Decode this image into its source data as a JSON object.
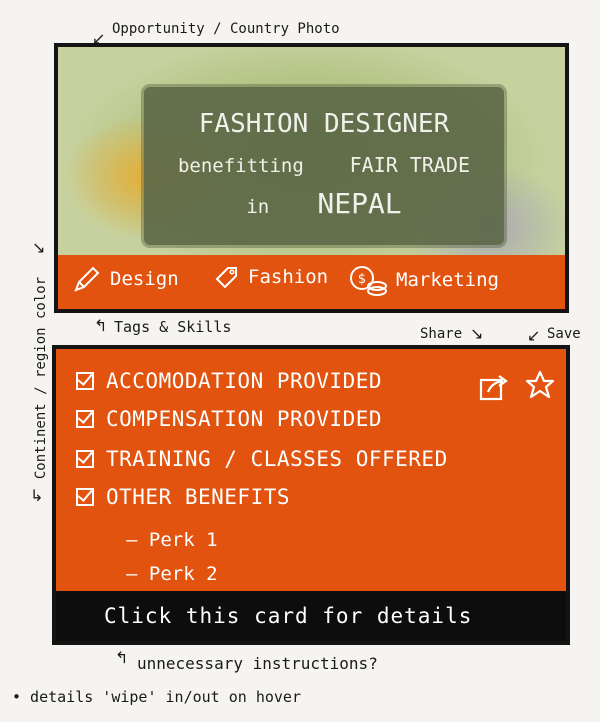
{
  "annotations": {
    "photo_label": "Opportunity / Country Photo",
    "region_label": "Continent / region color",
    "tags_label": "Tags & Skills",
    "share_label": "Share",
    "save_label": "Save",
    "instructions_label": "unnecessary instructions?",
    "hover_note": "• details 'wipe' in/out on hover"
  },
  "photo": {
    "title_line1": "FASHION DESIGNER",
    "title_line2a": "benefitting",
    "title_line2b": "FAIR TRADE",
    "title_line3a": "in",
    "title_line3b": "NEPAL"
  },
  "tags": [
    {
      "label": "Design",
      "icon": "pencil-icon"
    },
    {
      "label": "Fashion",
      "icon": "price-tag-icon"
    },
    {
      "label": "Marketing",
      "icon": "coins-icon"
    }
  ],
  "benefits": [
    "ACCOMODATION PROVIDED",
    "COMPENSATION PROVIDED",
    "TRAINING / CLASSES OFFERED",
    "OTHER BENEFITS"
  ],
  "perks": [
    "— Perk 1",
    "— Perk 2"
  ],
  "footer": {
    "text": "Click this card for details"
  },
  "colors": {
    "region": "#e1530f",
    "footer": "#0d0d0d",
    "border": "#141414"
  }
}
